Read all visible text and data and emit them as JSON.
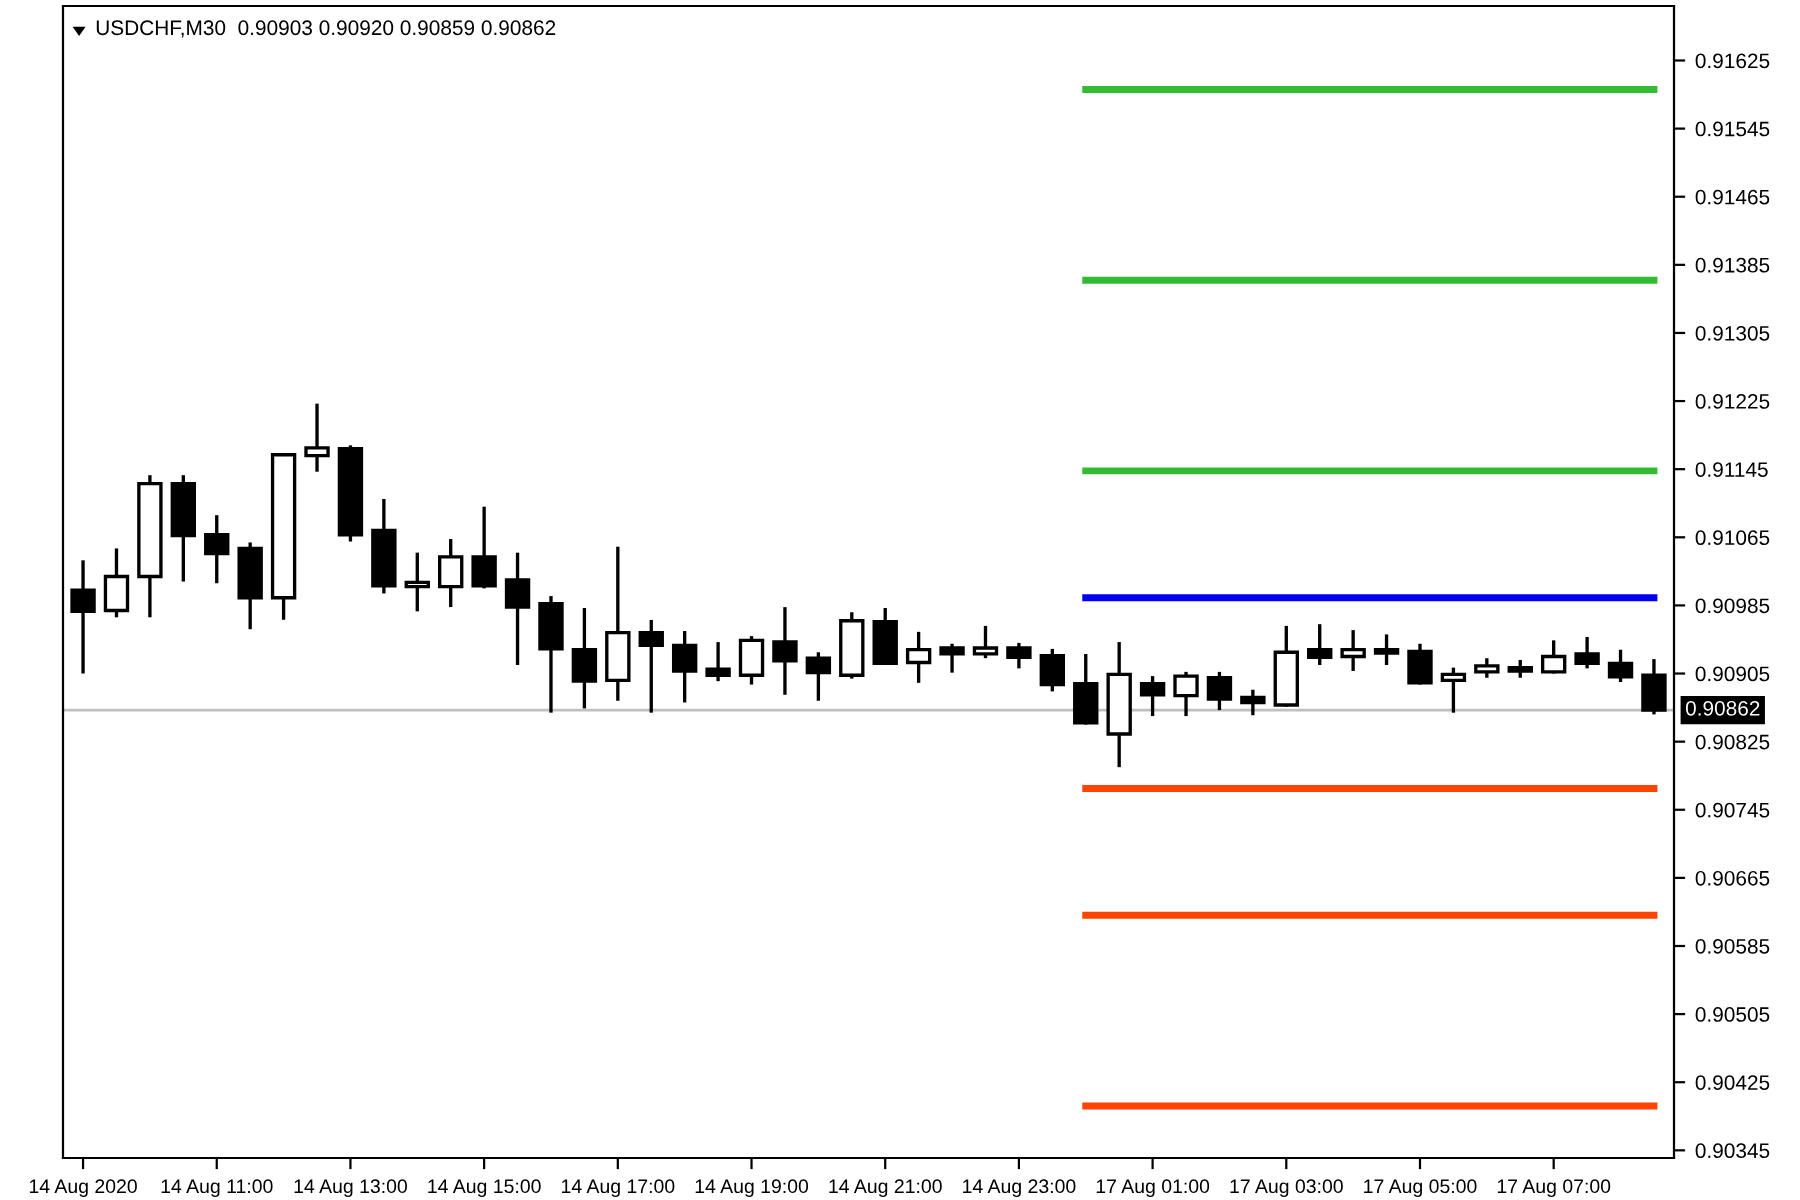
{
  "chart_data": {
    "type": "candlestick",
    "title": "USDCHF,M30  0.90903 0.90920 0.90859 0.90862",
    "categories": [
      "14 Aug 2020",
      null,
      null,
      null,
      "14 Aug 11:00",
      null,
      null,
      null,
      "14 Aug 13:00",
      null,
      null,
      null,
      "14 Aug 15:00",
      null,
      null,
      null,
      "14 Aug 17:00",
      null,
      null,
      null,
      "14 Aug 19:00",
      null,
      null,
      null,
      "14 Aug 21:00",
      null,
      null,
      null,
      "14 Aug 23:00",
      null,
      null,
      null,
      "17 Aug 01:00",
      null,
      null,
      null,
      "17 Aug 03:00",
      null,
      null,
      null,
      "17 Aug 05:00",
      null,
      null,
      null,
      "17 Aug 07:00",
      null,
      null,
      null
    ],
    "ohlc": [
      [
        0.91003,
        0.91036,
        0.90907,
        0.90978
      ],
      [
        0.90979,
        0.9105,
        0.90973,
        0.91019
      ],
      [
        0.91019,
        0.91136,
        0.90973,
        0.91128
      ],
      [
        0.91128,
        0.91136,
        0.91015,
        0.91067
      ],
      [
        0.91068,
        0.91089,
        0.91013,
        0.91046
      ],
      [
        0.91052,
        0.91057,
        0.90959,
        0.90994
      ],
      [
        0.90994,
        0.91162,
        0.9097,
        0.91162
      ],
      [
        0.91161,
        0.9122,
        0.91144,
        0.9117
      ],
      [
        0.91169,
        0.91171,
        0.91062,
        0.91068
      ],
      [
        0.91073,
        0.91108,
        0.91001,
        0.91008
      ],
      [
        0.91007,
        0.91045,
        0.9098,
        0.91012
      ],
      [
        0.91007,
        0.91061,
        0.90985,
        0.91042
      ],
      [
        0.91042,
        0.91099,
        0.91007,
        0.91008
      ],
      [
        0.91015,
        0.91045,
        0.90917,
        0.90983
      ],
      [
        0.90987,
        0.90994,
        0.90861,
        0.90934
      ],
      [
        0.90933,
        0.9098,
        0.90866,
        0.90896
      ],
      [
        0.90897,
        0.91052,
        0.90875,
        0.90953
      ],
      [
        0.90953,
        0.90966,
        0.90861,
        0.90938
      ],
      [
        0.90938,
        0.90953,
        0.90873,
        0.90908
      ],
      [
        0.9091,
        0.9094,
        0.90898,
        0.90903
      ],
      [
        0.90903,
        0.90947,
        0.90894,
        0.90944
      ],
      [
        0.90942,
        0.90981,
        0.90882,
        0.9092
      ],
      [
        0.90923,
        0.90928,
        0.90875,
        0.90906
      ],
      [
        0.90903,
        0.90975,
        0.90901,
        0.90967
      ],
      [
        0.90966,
        0.9098,
        0.90917,
        0.90917
      ],
      [
        0.90918,
        0.90952,
        0.90896,
        0.90933
      ],
      [
        0.90935,
        0.90938,
        0.90908,
        0.90928
      ],
      [
        0.90928,
        0.90959,
        0.90925,
        0.90935
      ],
      [
        0.90935,
        0.90939,
        0.90913,
        0.90924
      ],
      [
        0.90926,
        0.90932,
        0.90886,
        0.90892
      ],
      [
        0.90893,
        0.90926,
        0.90847,
        0.90847
      ],
      [
        0.90834,
        0.9094,
        0.90797,
        0.90904
      ],
      [
        0.90893,
        0.909,
        0.90857,
        0.9088
      ],
      [
        0.90879,
        0.90905,
        0.90857,
        0.90902
      ],
      [
        0.909,
        0.90905,
        0.90864,
        0.90875
      ],
      [
        0.90877,
        0.90884,
        0.90858,
        0.90871
      ],
      [
        0.90868,
        0.90959,
        0.90868,
        0.9093
      ],
      [
        0.90933,
        0.90961,
        0.90917,
        0.90924
      ],
      [
        0.90925,
        0.90954,
        0.9091,
        0.90933
      ],
      [
        0.90933,
        0.90949,
        0.90917,
        0.90929
      ],
      [
        0.90931,
        0.90938,
        0.90894,
        0.90894
      ],
      [
        0.90897,
        0.9091,
        0.90861,
        0.90904
      ],
      [
        0.90907,
        0.90921,
        0.90902,
        0.90914
      ],
      [
        0.90912,
        0.90919,
        0.90902,
        0.90908
      ],
      [
        0.90907,
        0.90942,
        0.90907,
        0.90925
      ],
      [
        0.90928,
        0.90946,
        0.90913,
        0.90917
      ],
      [
        0.90917,
        0.90931,
        0.90897,
        0.90901
      ],
      [
        0.90903,
        0.9092,
        0.90859,
        0.90862
      ]
    ],
    "series": [
      {
        "type": "line",
        "color": "#33bb33",
        "values": [
          null,
          null,
          null,
          null,
          null,
          null,
          null,
          null,
          null,
          null,
          null,
          null,
          null,
          null,
          null,
          null,
          null,
          null,
          null,
          null,
          null,
          null,
          null,
          null,
          null,
          null,
          null,
          null,
          null,
          null,
          0.91591,
          0.91591,
          0.91591,
          0.91591,
          0.91591,
          0.91591,
          0.91591,
          0.91591,
          0.91591,
          0.91591,
          0.91591,
          0.91591,
          0.91591,
          0.91591,
          0.91591,
          0.91591,
          0.91591,
          0.91591
        ]
      },
      {
        "type": "line",
        "color": "#33bb33",
        "values": [
          null,
          null,
          null,
          null,
          null,
          null,
          null,
          null,
          null,
          null,
          null,
          null,
          null,
          null,
          null,
          null,
          null,
          null,
          null,
          null,
          null,
          null,
          null,
          null,
          null,
          null,
          null,
          null,
          null,
          null,
          0.91367,
          0.91367,
          0.91367,
          0.91367,
          0.91367,
          0.91367,
          0.91367,
          0.91367,
          0.91367,
          0.91367,
          0.91367,
          0.91367,
          0.91367,
          0.91367,
          0.91367,
          0.91367,
          0.91367,
          0.91367
        ]
      },
      {
        "type": "line",
        "color": "#33bb33",
        "values": [
          null,
          null,
          null,
          null,
          null,
          null,
          null,
          null,
          null,
          null,
          null,
          null,
          null,
          null,
          null,
          null,
          null,
          null,
          null,
          null,
          null,
          null,
          null,
          null,
          null,
          null,
          null,
          null,
          null,
          null,
          0.91143,
          0.91143,
          0.91143,
          0.91143,
          0.91143,
          0.91143,
          0.91143,
          0.91143,
          0.91143,
          0.91143,
          0.91143,
          0.91143,
          0.91143,
          0.91143,
          0.91143,
          0.91143,
          0.91143,
          0.91143
        ]
      },
      {
        "type": "line",
        "color": "#0000ee",
        "values": [
          null,
          null,
          null,
          null,
          null,
          null,
          null,
          null,
          null,
          null,
          null,
          null,
          null,
          null,
          null,
          null,
          null,
          null,
          null,
          null,
          null,
          null,
          null,
          null,
          null,
          null,
          null,
          null,
          null,
          null,
          0.90994,
          0.90994,
          0.90994,
          0.90994,
          0.90994,
          0.90994,
          0.90994,
          0.90994,
          0.90994,
          0.90994,
          0.90994,
          0.90994,
          0.90994,
          0.90994,
          0.90994,
          0.90994,
          0.90994,
          0.90994
        ]
      },
      {
        "type": "line",
        "color": "#ff4400",
        "values": [
          null,
          null,
          null,
          null,
          null,
          null,
          null,
          null,
          null,
          null,
          null,
          null,
          null,
          null,
          null,
          null,
          null,
          null,
          null,
          null,
          null,
          null,
          null,
          null,
          null,
          null,
          null,
          null,
          null,
          null,
          0.9077,
          0.9077,
          0.9077,
          0.9077,
          0.9077,
          0.9077,
          0.9077,
          0.9077,
          0.9077,
          0.9077,
          0.9077,
          0.9077,
          0.9077,
          0.9077,
          0.9077,
          0.9077,
          0.9077,
          0.9077
        ]
      },
      {
        "type": "line",
        "color": "#ff4400",
        "values": [
          null,
          null,
          null,
          null,
          null,
          null,
          null,
          null,
          null,
          null,
          null,
          null,
          null,
          null,
          null,
          null,
          null,
          null,
          null,
          null,
          null,
          null,
          null,
          null,
          null,
          null,
          null,
          null,
          null,
          null,
          0.90621,
          0.90621,
          0.90621,
          0.90621,
          0.90621,
          0.90621,
          0.90621,
          0.90621,
          0.90621,
          0.90621,
          0.90621,
          0.90621,
          0.90621,
          0.90621,
          0.90621,
          0.90621,
          0.90621,
          0.90621
        ]
      },
      {
        "type": "line",
        "color": "#ff4400",
        "values": [
          null,
          null,
          null,
          null,
          null,
          null,
          null,
          null,
          null,
          null,
          null,
          null,
          null,
          null,
          null,
          null,
          null,
          null,
          null,
          null,
          null,
          null,
          null,
          null,
          null,
          null,
          null,
          null,
          null,
          null,
          0.90397,
          0.90397,
          0.90397,
          0.90397,
          0.90397,
          0.90397,
          0.90397,
          0.90397,
          0.90397,
          0.90397,
          0.90397,
          0.90397,
          0.90397,
          0.90397,
          0.90397,
          0.90397,
          0.90397,
          0.90397
        ]
      }
    ],
    "ref_lines": [
      {
        "axis": "y",
        "value": 0.90862,
        "label": "0.90862",
        "color": "#c0c0c0"
      }
    ],
    "ylim": [
      0.90336,
      0.91689
    ],
    "yticks": [
      0.90345,
      0.90425,
      0.90505,
      0.90585,
      0.90665,
      0.90745,
      0.90825,
      0.90905,
      0.90985,
      0.91065,
      0.91145,
      0.91225,
      0.91305,
      0.91385,
      0.91465,
      0.91545,
      0.91625
    ],
    "grid": false,
    "legend": false
  }
}
